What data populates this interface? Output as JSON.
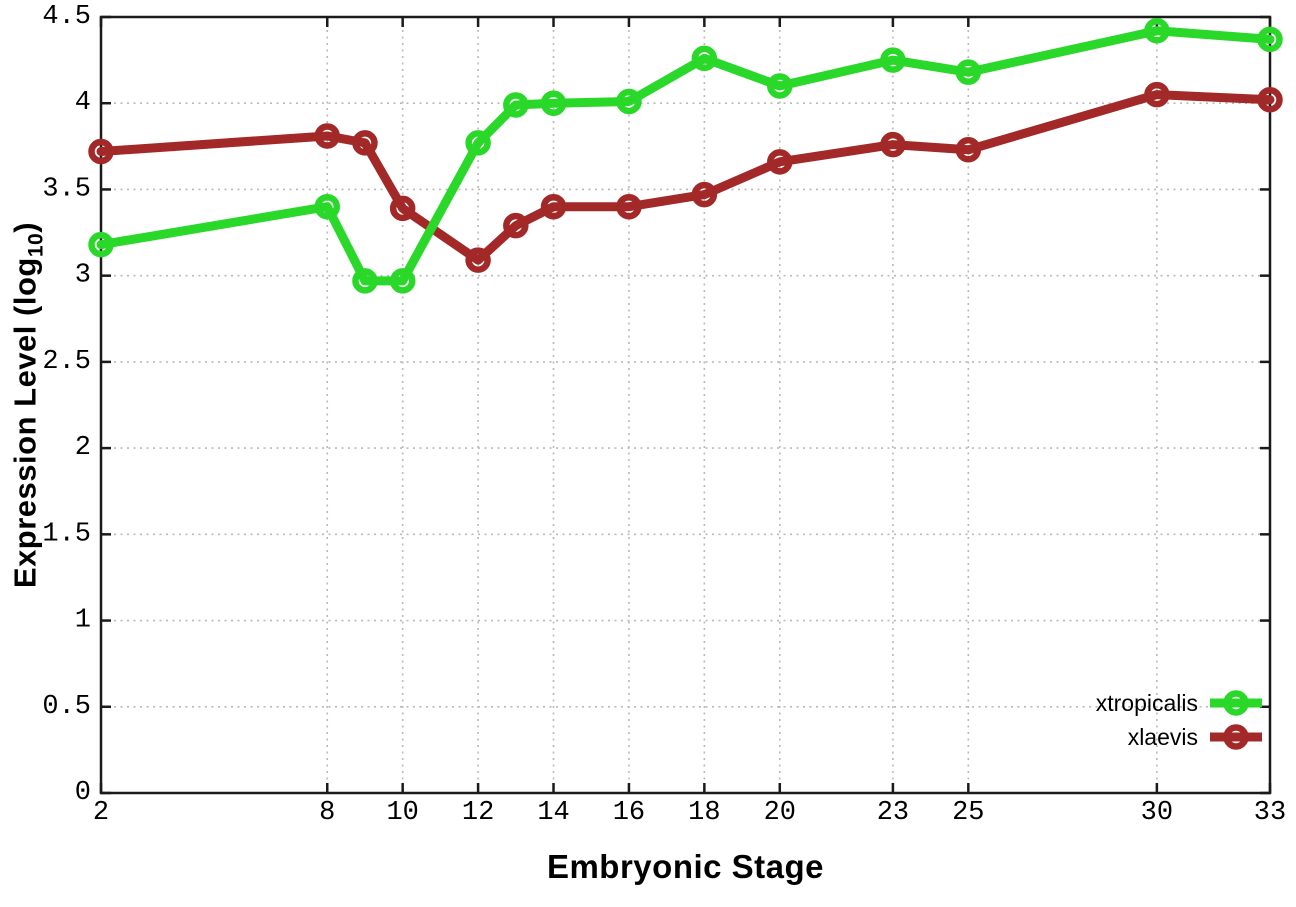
{
  "chart_data": {
    "type": "line",
    "title": "",
    "xlabel": "Embryonic Stage",
    "ylabel": "Expression Level (log10)",
    "ylabel_prefix": "Expression Level (log",
    "ylabel_sub": "10",
    "ylabel_suffix": ")",
    "x": [
      2,
      8,
      9,
      10,
      12,
      13,
      14,
      16,
      18,
      20,
      23,
      25,
      30,
      33
    ],
    "x_ticks": [
      2,
      8,
      10,
      12,
      14,
      16,
      18,
      20,
      23,
      25,
      30,
      33
    ],
    "y_ticks": [
      0,
      0.5,
      1,
      1.5,
      2,
      2.5,
      3,
      3.5,
      4,
      4.5
    ],
    "xlim": [
      2,
      33
    ],
    "ylim": [
      0,
      4.5
    ],
    "grid": true,
    "legend_position": "bottom-right",
    "marker": "open-circle",
    "series": [
      {
        "name": "xtropicalis",
        "color": "#29d829",
        "values": [
          3.18,
          3.4,
          2.97,
          2.97,
          3.77,
          3.99,
          4.0,
          4.01,
          4.26,
          4.1,
          4.25,
          4.18,
          4.42,
          4.37
        ]
      },
      {
        "name": "xlaevis",
        "color": "#a32929",
        "values": [
          3.72,
          3.81,
          3.77,
          3.39,
          3.09,
          3.29,
          3.4,
          3.4,
          3.47,
          3.66,
          3.76,
          3.73,
          4.05,
          4.02
        ]
      }
    ],
    "colors": {
      "grid": "#b9b9b9",
      "axis": "#1a1a1a",
      "text": "#000000",
      "background": "#ffffff"
    }
  }
}
